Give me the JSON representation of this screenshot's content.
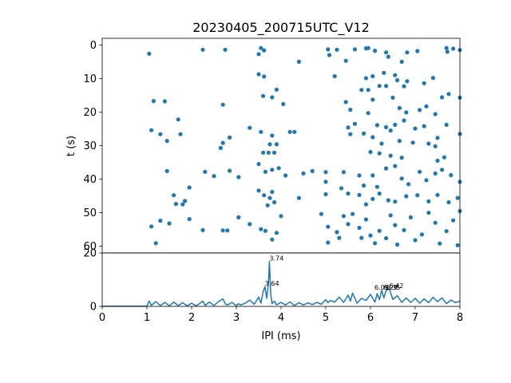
{
  "chart_data": [
    {
      "type": "scatter",
      "title": "20230405_200715UTC_V12",
      "xlabel": "",
      "ylabel": "t (s)",
      "xlim": [
        0,
        8
      ],
      "ylim": [
        62,
        -2
      ],
      "y_inverted": true,
      "ytick_labels": [
        "0",
        "10",
        "20",
        "30",
        "40",
        "50",
        "60"
      ],
      "ytick_values": [
        0,
        10,
        20,
        30,
        40,
        50,
        60
      ],
      "grid": false,
      "color": "#1f77b4",
      "series": [
        {
          "points": [
            [
              1.05,
              2.6
            ],
            [
              2.25,
              1.4
            ],
            [
              2.75,
              1.4
            ],
            [
              3.5,
              2.7
            ],
            [
              3.55,
              0.9
            ],
            [
              3.62,
              1.6
            ],
            [
              4.4,
              5.0
            ],
            [
              5.05,
              1.3
            ],
            [
              5.08,
              3.0
            ],
            [
              5.25,
              1.4
            ],
            [
              5.45,
              4.7
            ],
            [
              5.65,
              1.3
            ],
            [
              5.9,
              1.0
            ],
            [
              5.95,
              0.9
            ],
            [
              6.1,
              1.7
            ],
            [
              6.35,
              2.2
            ],
            [
              6.4,
              3.5
            ],
            [
              6.7,
              5.0
            ],
            [
              6.82,
              2.2
            ],
            [
              7.05,
              1.8
            ],
            [
              7.7,
              0.9
            ],
            [
              7.72,
              2.0
            ],
            [
              7.85,
              1.1
            ],
            [
              8.0,
              1.5
            ],
            [
              5.2,
              9.3
            ],
            [
              5.9,
              9.9
            ],
            [
              6.05,
              9.3
            ],
            [
              6.3,
              8.3
            ],
            [
              6.55,
              9.0
            ],
            [
              6.6,
              10.5
            ],
            [
              6.75,
              12.3
            ],
            [
              6.82,
              10.8
            ],
            [
              7.4,
              9.8
            ],
            [
              7.2,
              11.4
            ],
            [
              3.5,
              8.7
            ],
            [
              3.62,
              9.4
            ],
            [
              3.6,
              15.2
            ],
            [
              3.8,
              15.6
            ],
            [
              3.9,
              13.3
            ],
            [
              4.05,
              17.6
            ],
            [
              1.15,
              16.7
            ],
            [
              1.4,
              16.8
            ],
            [
              1.7,
              22.2
            ],
            [
              1.1,
              25.4
            ],
            [
              1.3,
              26.6
            ],
            [
              1.75,
              26.6
            ],
            [
              1.45,
              28.6
            ],
            [
              2.7,
              17.8
            ],
            [
              2.85,
              27.6
            ],
            [
              2.7,
              29.2
            ],
            [
              2.65,
              30.7
            ],
            [
              3.3,
              24.7
            ],
            [
              3.55,
              25.9
            ],
            [
              3.8,
              27.0
            ],
            [
              4.2,
              25.9
            ],
            [
              4.3,
              25.9
            ],
            [
              3.75,
              29.6
            ],
            [
              3.9,
              29.6
            ],
            [
              3.6,
              32.1
            ],
            [
              3.72,
              32.1
            ],
            [
              3.85,
              32.1
            ],
            [
              5.45,
              17.0
            ],
            [
              5.55,
              19.3
            ],
            [
              5.8,
              13.4
            ],
            [
              5.95,
              13.4
            ],
            [
              6.05,
              16.3
            ],
            [
              6.2,
              12.2
            ],
            [
              6.35,
              12.2
            ],
            [
              6.5,
              15.7
            ],
            [
              6.65,
              18.8
            ],
            [
              6.8,
              20.1
            ],
            [
              7.1,
              19.4
            ],
            [
              7.25,
              18.3
            ],
            [
              7.45,
              20.6
            ],
            [
              7.6,
              15.6
            ],
            [
              7.75,
              14.6
            ],
            [
              8.0,
              15.7
            ],
            [
              5.5,
              24.6
            ],
            [
              5.65,
              23.5
            ],
            [
              5.95,
              20.3
            ],
            [
              6.15,
              23.9
            ],
            [
              6.35,
              24.5
            ],
            [
              6.55,
              23.8
            ],
            [
              6.75,
              22.5
            ],
            [
              7.0,
              24.9
            ],
            [
              7.2,
              24.2
            ],
            [
              7.5,
              27.7
            ],
            [
              7.7,
              23.8
            ],
            [
              8.0,
              26.5
            ],
            [
              5.55,
              26.6
            ],
            [
              5.85,
              26.4
            ],
            [
              6.05,
              27.5
            ],
            [
              6.25,
              29.4
            ],
            [
              6.45,
              25.5
            ],
            [
              6.65,
              28.6
            ],
            [
              6.95,
              29.1
            ],
            [
              7.3,
              29.4
            ],
            [
              7.45,
              30.2
            ],
            [
              6.0,
              31.9
            ],
            [
              6.2,
              32.3
            ],
            [
              6.45,
              33.0
            ],
            [
              6.7,
              33.6
            ],
            [
              7.5,
              34.5
            ],
            [
              7.65,
              33.5
            ],
            [
              1.45,
              37.6
            ],
            [
              2.3,
              37.8
            ],
            [
              2.5,
              39.1
            ],
            [
              2.85,
              37.5
            ],
            [
              3.05,
              39.4
            ],
            [
              3.5,
              35.5
            ],
            [
              3.65,
              37.8
            ],
            [
              3.8,
              37.2
            ],
            [
              3.95,
              36.7
            ],
            [
              4.1,
              38.9
            ],
            [
              4.5,
              38.3
            ],
            [
              4.7,
              37.6
            ],
            [
              5.0,
              37.9
            ],
            [
              5.0,
              40.8
            ],
            [
              5.4,
              37.9
            ],
            [
              5.75,
              38.9
            ],
            [
              5.85,
              41.9
            ],
            [
              6.05,
              38.9
            ],
            [
              6.15,
              42.3
            ],
            [
              6.35,
              36.8
            ],
            [
              6.55,
              36.1
            ],
            [
              6.7,
              39.8
            ],
            [
              6.85,
              41.5
            ],
            [
              7.1,
              37.8
            ],
            [
              7.25,
              40.3
            ],
            [
              7.45,
              38.3
            ],
            [
              7.6,
              37.2
            ],
            [
              7.8,
              38.8
            ],
            [
              8.0,
              40.8
            ],
            [
              1.6,
              44.8
            ],
            [
              1.95,
              42.5
            ],
            [
              1.85,
              46.5
            ],
            [
              1.65,
              47.4
            ],
            [
              1.8,
              47.5
            ],
            [
              1.1,
              54.1
            ],
            [
              1.3,
              52.4
            ],
            [
              1.5,
              53.2
            ],
            [
              1.95,
              51.9
            ],
            [
              1.2,
              59.1
            ],
            [
              2.25,
              55.2
            ],
            [
              2.7,
              55.3
            ],
            [
              2.8,
              55.3
            ],
            [
              3.05,
              51.4
            ],
            [
              3.3,
              53.4
            ],
            [
              3.55,
              54.9
            ],
            [
              3.65,
              55.4
            ],
            [
              3.8,
              58.0
            ],
            [
              3.9,
              56.0
            ],
            [
              4.0,
              51.0
            ],
            [
              3.5,
              43.4
            ],
            [
              3.62,
              44.8
            ],
            [
              3.75,
              45.6
            ],
            [
              3.85,
              46.9
            ],
            [
              3.7,
              47.8
            ],
            [
              3.8,
              43.8
            ],
            [
              4.4,
              45.6
            ],
            [
              5.0,
              44.5
            ],
            [
              5.35,
              42.7
            ],
            [
              5.5,
              44.3
            ],
            [
              5.75,
              44.7
            ],
            [
              5.9,
              47.5
            ],
            [
              6.05,
              45.9
            ],
            [
              6.2,
              44.3
            ],
            [
              6.4,
              46.3
            ],
            [
              6.55,
              46.7
            ],
            [
              6.8,
              45.1
            ],
            [
              7.05,
              44.8
            ],
            [
              7.3,
              46.6
            ],
            [
              7.5,
              44.7
            ],
            [
              7.75,
              46.9
            ],
            [
              7.95,
              45.6
            ],
            [
              4.9,
              50.4
            ],
            [
              5.05,
              54.2
            ],
            [
              5.05,
              58.9
            ],
            [
              5.25,
              55.8
            ],
            [
              5.3,
              57.5
            ],
            [
              5.4,
              51.0
            ],
            [
              5.5,
              53.4
            ],
            [
              5.6,
              50.4
            ],
            [
              5.75,
              54.5
            ],
            [
              5.8,
              57.5
            ],
            [
              5.9,
              52.0
            ],
            [
              6.0,
              56.8
            ],
            [
              6.1,
              59.1
            ],
            [
              6.2,
              55.4
            ],
            [
              6.35,
              57.6
            ],
            [
              6.45,
              50.8
            ],
            [
              6.55,
              53.7
            ],
            [
              6.6,
              59.5
            ],
            [
              6.75,
              55.2
            ],
            [
              6.9,
              51.4
            ],
            [
              7.0,
              58.2
            ],
            [
              7.15,
              56.5
            ],
            [
              7.3,
              50.0
            ],
            [
              7.45,
              53.0
            ],
            [
              7.55,
              59.2
            ],
            [
              7.7,
              55.5
            ],
            [
              7.85,
              52.3
            ],
            [
              7.95,
              59.7
            ],
            [
              8.0,
              49.5
            ]
          ]
        }
      ]
    },
    {
      "type": "line",
      "xlabel": "IPI (ms)",
      "ylabel": "",
      "xlim": [
        0,
        8
      ],
      "ylim": [
        0,
        20
      ],
      "xtick_labels": [
        "0",
        "1",
        "2",
        "3",
        "4",
        "5",
        "6",
        "7",
        "8"
      ],
      "xtick_values": [
        0,
        1,
        2,
        3,
        4,
        5,
        6,
        7,
        8
      ],
      "ytick_labels": [
        "0",
        "20"
      ],
      "ytick_values": [
        0,
        20
      ],
      "grid": false,
      "color": "#1f77b4",
      "series": [
        {
          "x": [
            0,
            1.0,
            1.05,
            1.1,
            1.2,
            1.3,
            1.4,
            1.5,
            1.6,
            1.7,
            1.8,
            1.9,
            2.0,
            2.1,
            2.2,
            2.25,
            2.3,
            2.4,
            2.5,
            2.6,
            2.7,
            2.75,
            2.8,
            2.9,
            3.0,
            3.05,
            3.1,
            3.2,
            3.3,
            3.4,
            3.5,
            3.55,
            3.6,
            3.64,
            3.68,
            3.72,
            3.74,
            3.77,
            3.8,
            3.85,
            3.9,
            4.0,
            4.1,
            4.2,
            4.3,
            4.4,
            4.5,
            4.6,
            4.7,
            4.8,
            4.9,
            5.0,
            5.05,
            5.1,
            5.2,
            5.3,
            5.4,
            5.5,
            5.55,
            5.6,
            5.7,
            5.8,
            5.9,
            6.0,
            6.1,
            6.15,
            6.2,
            6.25,
            6.3,
            6.35,
            6.42,
            6.5,
            6.6,
            6.7,
            6.8,
            6.9,
            7.0,
            7.1,
            7.2,
            7.3,
            7.4,
            7.5,
            7.6,
            7.7,
            7.8,
            7.9,
            8.0
          ],
          "y": [
            0.1,
            0.1,
            2.0,
            0.4,
            1.8,
            0.3,
            1.5,
            0.2,
            1.6,
            0.3,
            1.4,
            0.2,
            1.2,
            0.2,
            1.3,
            2.0,
            0.4,
            1.6,
            0.3,
            1.8,
            2.8,
            1.0,
            0.5,
            1.5,
            0.3,
            1.0,
            0.5,
            1.2,
            2.4,
            0.8,
            3.5,
            1.2,
            5.5,
            7.4,
            3.0,
            9.0,
            16.8,
            4.5,
            1.0,
            2.0,
            0.6,
            1.5,
            0.5,
            1.7,
            0.3,
            1.4,
            0.5,
            1.3,
            0.7,
            1.5,
            0.8,
            2.5,
            1.4,
            2.2,
            1.6,
            3.5,
            1.5,
            4.2,
            2.0,
            5.0,
            1.2,
            3.0,
            2.2,
            4.5,
            1.6,
            4.8,
            2.5,
            6.0,
            3.2,
            5.9,
            6.6,
            2.6,
            4.0,
            1.5,
            3.2,
            1.5,
            3.0,
            1.2,
            2.8,
            1.4,
            3.4,
            1.8,
            3.2,
            1.0,
            2.4,
            1.4,
            2.0
          ]
        }
      ],
      "annotations": [
        {
          "text": "3.74",
          "x": 3.74,
          "y": 16.8
        },
        {
          "text": "3.64",
          "x": 3.64,
          "y": 7.4
        },
        {
          "text": "6.09",
          "x": 6.09,
          "y": 6.0
        },
        {
          "text": "6.29",
          "x": 6.29,
          "y": 6.0
        },
        {
          "text": "6.35",
          "x": 6.35,
          "y": 6.0
        },
        {
          "text": "6.42",
          "x": 6.42,
          "y": 6.6
        }
      ]
    }
  ]
}
